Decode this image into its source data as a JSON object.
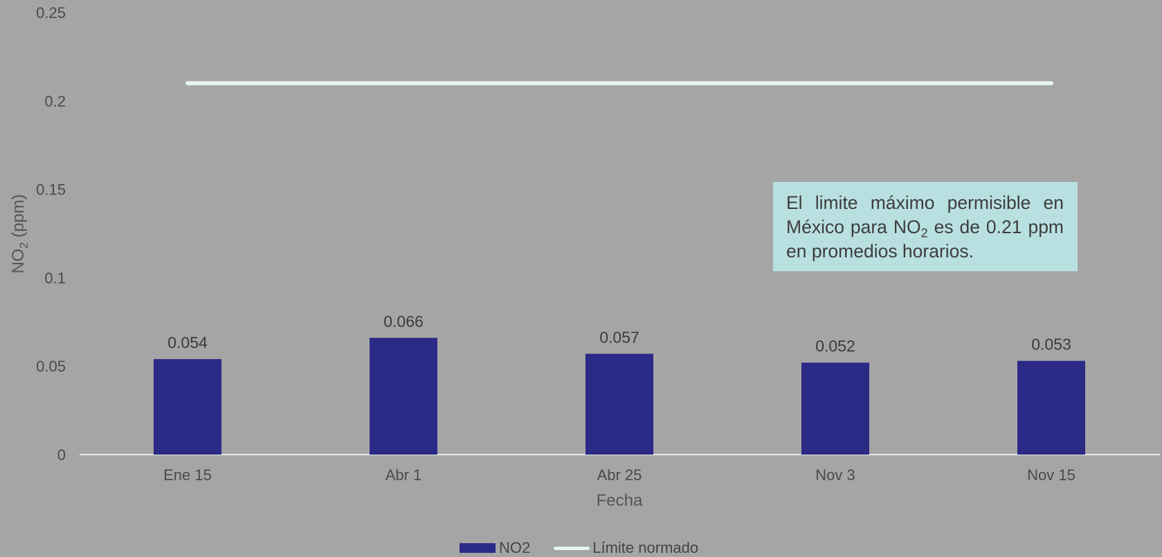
{
  "chart_data": {
    "type": "bar",
    "categories": [
      "Ene 15",
      "Abr 1",
      "Abr 25",
      "Nov 3",
      "Nov 15"
    ],
    "series": [
      {
        "name": "NO2",
        "type": "bar",
        "values": [
          0.054,
          0.066,
          0.057,
          0.052,
          0.053
        ],
        "color": "#2b2a87"
      },
      {
        "name": "Límite normado",
        "type": "line",
        "values": [
          0.21,
          0.21,
          0.21,
          0.21,
          0.21
        ],
        "color": "#e6f5f3"
      }
    ],
    "data_labels": [
      "0.054",
      "0.066",
      "0.057",
      "0.052",
      "0.053"
    ],
    "xlabel": "Fecha",
    "ylabel": {
      "main": "NO",
      "sub": "2",
      "rest": " (ppm)"
    },
    "yticks": [
      "0",
      "0.05",
      "0.1",
      "0.15",
      "0.2",
      "0.25"
    ],
    "ytick_values": [
      0,
      0.05,
      0.1,
      0.15,
      0.2,
      0.25
    ],
    "ylim": [
      0,
      0.25
    ],
    "grid": false,
    "legend_position": "bottom-center",
    "annotation": {
      "part1": "El limite máximo permisible en México para NO",
      "sub": "2",
      "part2": " es de 0.21 ppm en promedios horarios."
    }
  }
}
